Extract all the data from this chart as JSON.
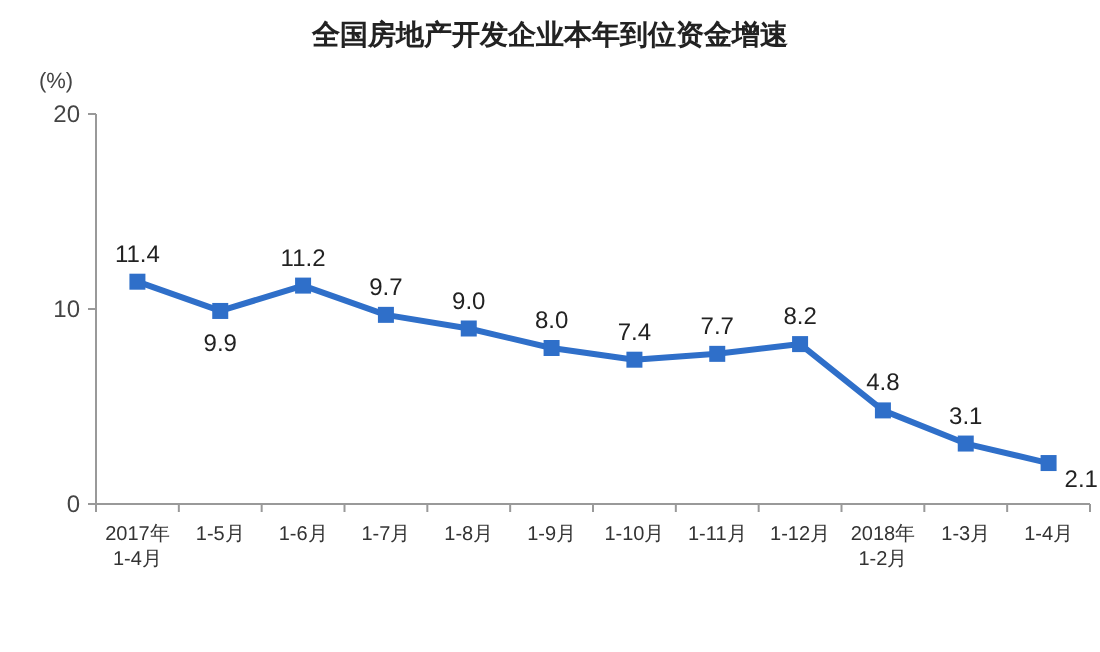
{
  "chart_data": {
    "type": "line",
    "title": "全国房地产开发企业本年到位资金增速",
    "ylabel": "(%)",
    "categories": [
      "2017年\n1-4月",
      "1-5月",
      "1-6月",
      "1-7月",
      "1-8月",
      "1-9月",
      "1-10月",
      "1-11月",
      "1-12月",
      "2018年\n1-2月",
      "1-3月",
      "1-4月"
    ],
    "series": [
      {
        "color": "#2f6fc9",
        "values": [
          11.4,
          9.9,
          11.2,
          9.7,
          9.0,
          8.0,
          7.4,
          7.7,
          8.2,
          4.8,
          3.1,
          2.1
        ],
        "value_labels": [
          "11.4",
          "9.9",
          "11.2",
          "9.7",
          "9.0",
          "8.0",
          "7.4",
          "7.7",
          "8.2",
          "4.8",
          "3.1",
          "2.1"
        ]
      }
    ],
    "ylim": [
      0,
      20
    ],
    "yticks": [
      0,
      10,
      20
    ],
    "marker": "square",
    "line_style": "solid"
  }
}
